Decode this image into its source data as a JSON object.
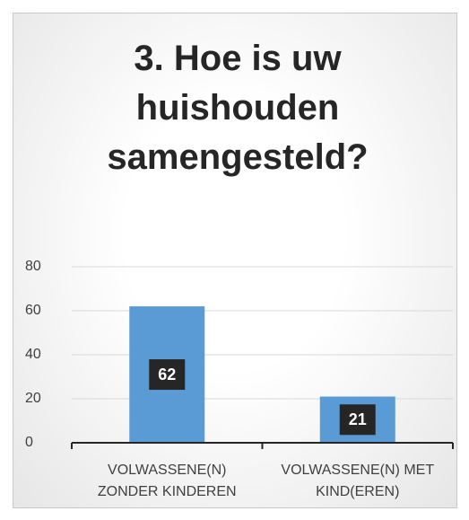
{
  "chart_data": {
    "type": "bar",
    "title": "3. Hoe is uw huishouden samengesteld?",
    "categories": [
      "VOLWASSENE(N) ZONDER KINDEREN",
      "VOLWASSENE(N) MET KIND(EREN)"
    ],
    "values": [
      62,
      21
    ],
    "color": "#5b9bd5",
    "ylim": [
      0,
      80
    ],
    "yticks": [
      0,
      20,
      40,
      60,
      80
    ],
    "grid": true
  }
}
